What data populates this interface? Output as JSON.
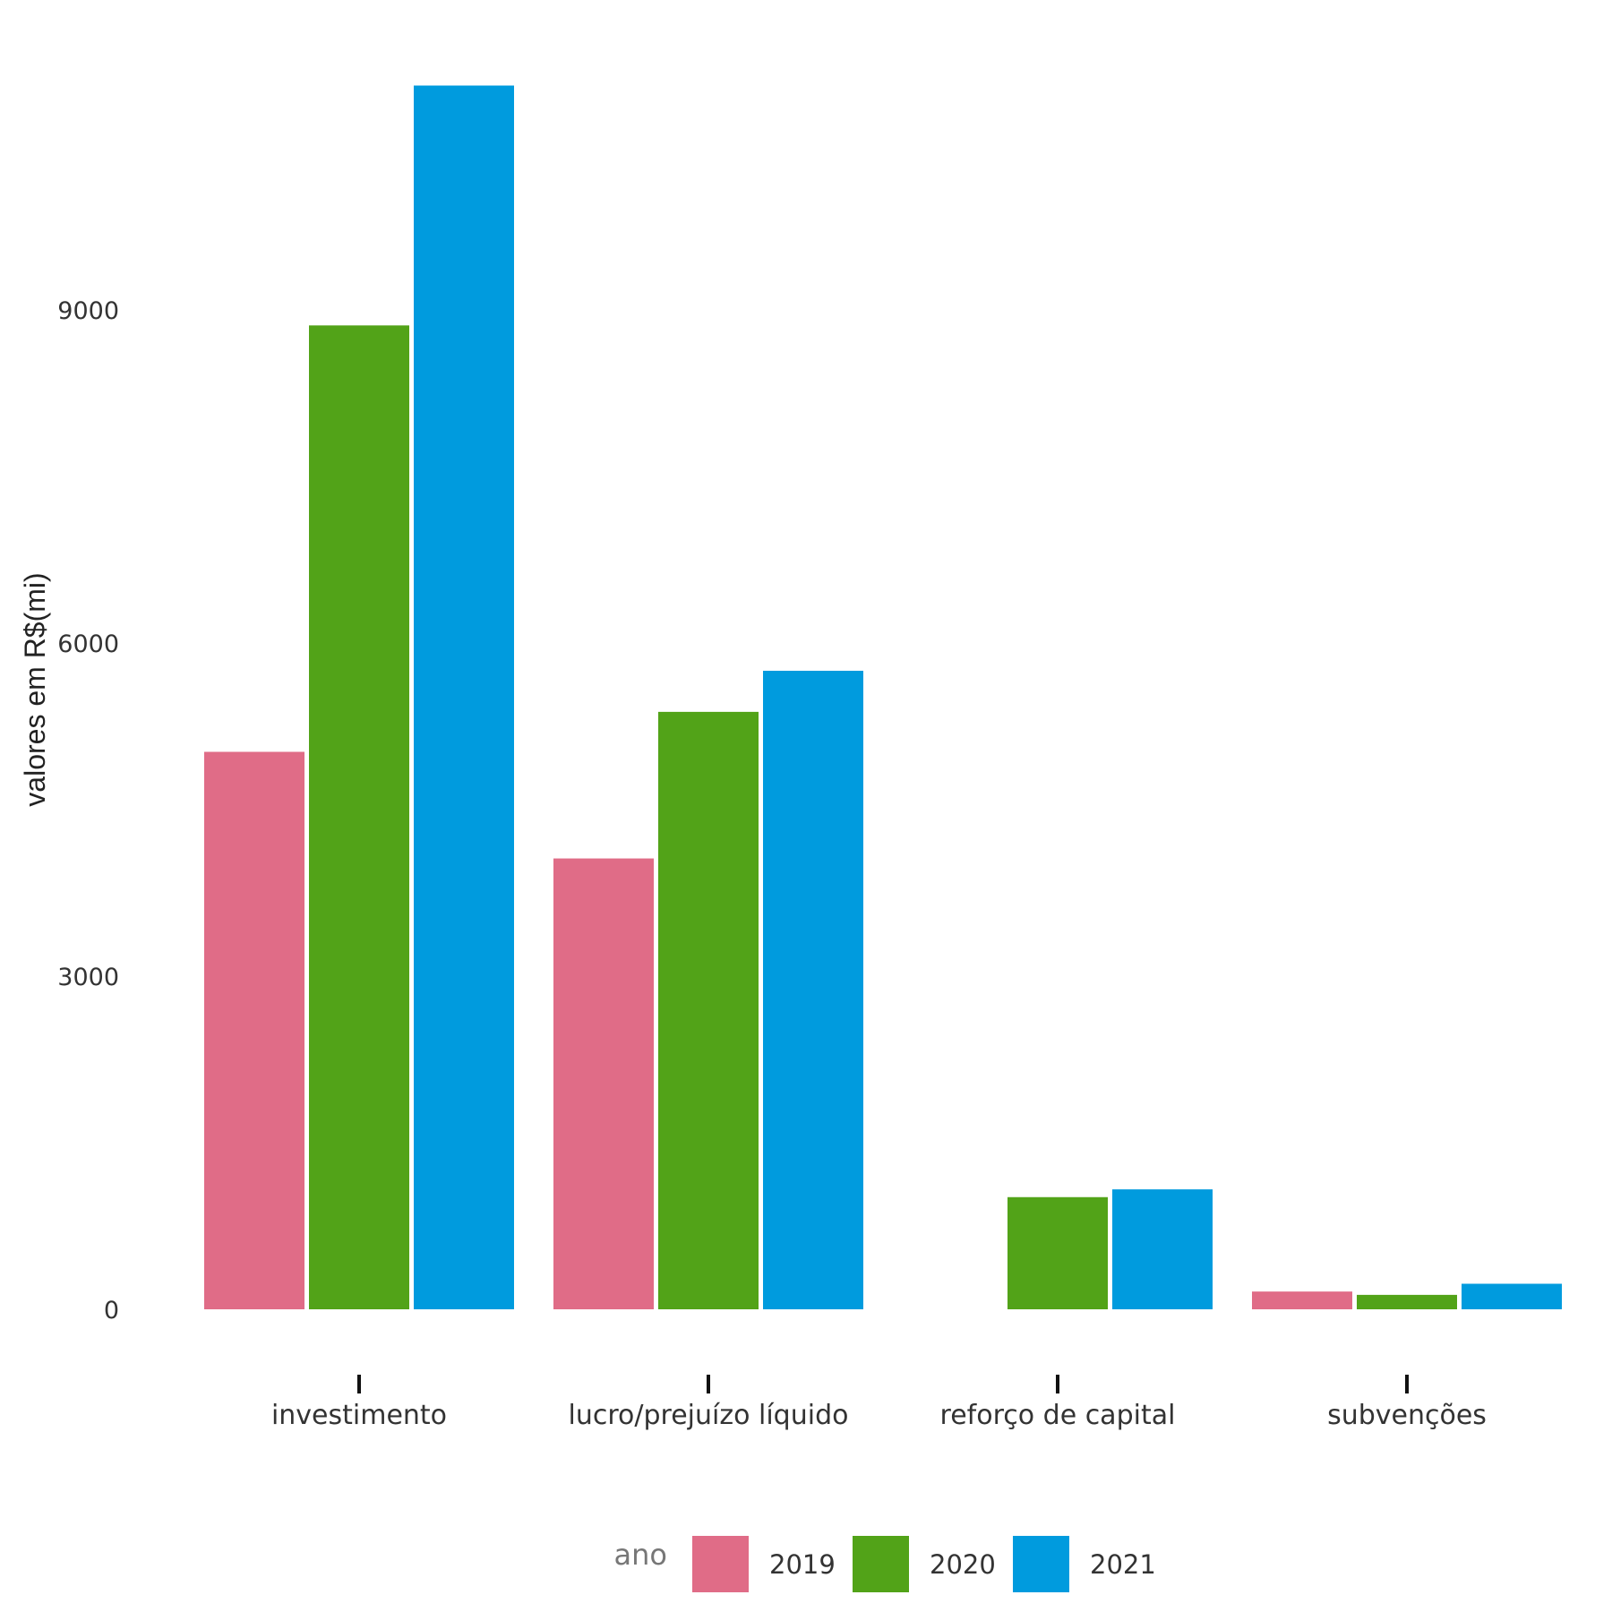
{
  "chart_data": {
    "type": "bar",
    "categories": [
      "investimento",
      "lucro/prejuízo líquido",
      "reforço de capital",
      "subvenções"
    ],
    "series": [
      {
        "name": "2019",
        "color": "#e06c87",
        "values": [
          5020,
          4060,
          0,
          160
        ]
      },
      {
        "name": "2020",
        "color": "#52a318",
        "values": [
          8860,
          5380,
          1010,
          130
        ]
      },
      {
        "name": "2021",
        "color": "#009bde",
        "values": [
          11020,
          5750,
          1080,
          230
        ]
      }
    ],
    "title": "",
    "xlabel": "",
    "ylabel": "valores em R$(mi)",
    "ylim": [
      0,
      11500
    ],
    "yticks": [
      "0",
      "3000",
      "6000",
      "9000"
    ],
    "grid": false,
    "legend": {
      "title": "ano",
      "position": "bottom"
    }
  }
}
